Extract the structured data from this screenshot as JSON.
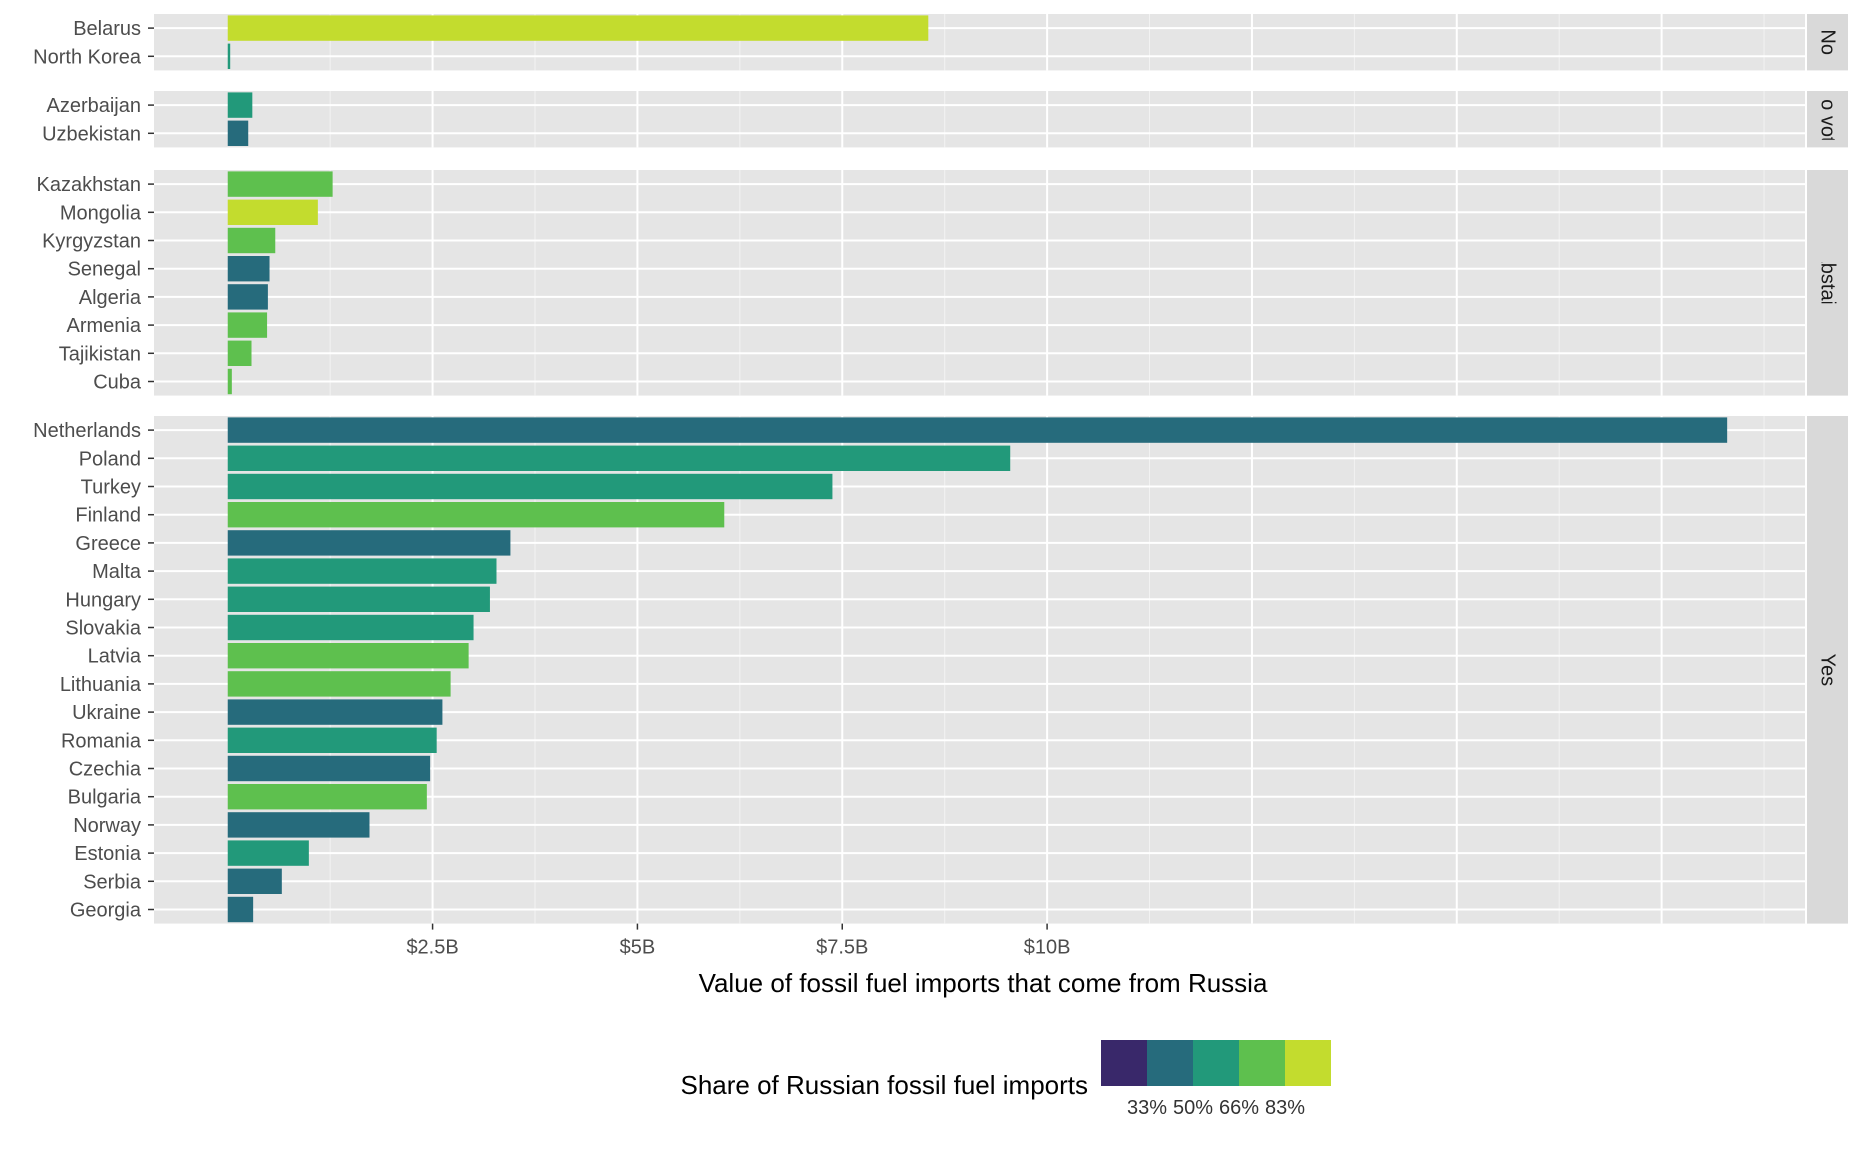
{
  "chart_data": {
    "type": "bar",
    "orientation": "horizontal",
    "facets": [
      {
        "label": "No",
        "categories": [
          "Belarus",
          "North Korea"
        ],
        "values": [
          8.55,
          0.03
        ],
        "shares": [
          0.88,
          0.5
        ]
      },
      {
        "label": "No vote",
        "categories": [
          "Azerbaijan",
          "Uzbekistan"
        ],
        "values": [
          0.3,
          0.25
        ],
        "shares": [
          0.45,
          0.3
        ]
      },
      {
        "label": "Abstain",
        "categories": [
          "Kazakhstan",
          "Mongolia",
          "Kyrgyzstan",
          "Senegal",
          "Algeria",
          "Armenia",
          "Tajikistan",
          "Cuba"
        ],
        "values": [
          1.28,
          1.1,
          0.58,
          0.51,
          0.49,
          0.48,
          0.29,
          0.05
        ],
        "shares": [
          0.75,
          0.88,
          0.75,
          0.3,
          0.3,
          0.75,
          0.6,
          0.6
        ]
      },
      {
        "label": "Yes",
        "categories": [
          "Netherlands",
          "Poland",
          "Turkey",
          "Finland",
          "Greece",
          "Malta",
          "Hungary",
          "Slovakia",
          "Latvia",
          "Lithuania",
          "Ukraine",
          "Romania",
          "Czechia",
          "Bulgaria",
          "Norway",
          "Estonia",
          "Serbia",
          "Georgia"
        ],
        "values": [
          18.3,
          9.55,
          7.38,
          6.06,
          3.45,
          3.28,
          3.2,
          3.0,
          2.94,
          2.72,
          2.62,
          2.55,
          2.47,
          2.43,
          1.73,
          0.99,
          0.66,
          0.31
        ],
        "shares": [
          0.3,
          0.45,
          0.45,
          0.6,
          0.3,
          0.45,
          0.45,
          0.45,
          0.75,
          0.6,
          0.3,
          0.45,
          0.3,
          0.6,
          0.3,
          0.45,
          0.3,
          0.3
        ]
      }
    ],
    "x_ticks": [
      {
        "value": 2.5,
        "label": "$2.5B"
      },
      {
        "value": 5,
        "label": "$5B"
      },
      {
        "value": 7.5,
        "label": "$7.5B"
      },
      {
        "value": 10,
        "label": "$10B"
      }
    ],
    "xlim": [
      -0.9,
      19.25
    ],
    "xlabel": "Value of fossil fuel imports that come from Russia",
    "ylabel": "",
    "grid": true,
    "legend": {
      "title": "Share of Russian fossil fuel imports",
      "position": "bottom",
      "colors": [
        "#39286a",
        "#266b7c",
        "#22997a",
        "#5ec04e",
        "#c3dc2e"
      ],
      "labels": [
        "33%",
        "50%",
        "66%",
        "83%"
      ]
    }
  }
}
